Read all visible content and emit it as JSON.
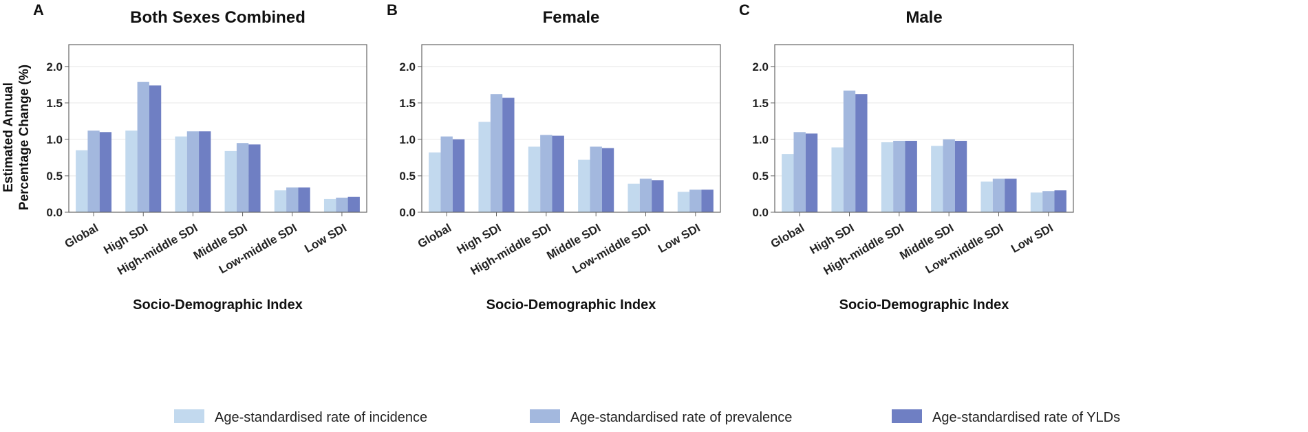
{
  "colors": {
    "incidence": "#c2d9ee",
    "prevalence": "#a3b8de",
    "ylds": "#6f7fc3",
    "grid": "#e6e6e6",
    "frame": "#666666"
  },
  "shared": {
    "ylabel_line1": "Estimated Annual",
    "ylabel_line2": "Percentage Change (%)",
    "xlabel": "Socio-Demographic Index",
    "y_ticks": [
      "0.0",
      "0.5",
      "1.0",
      "1.5",
      "2.0"
    ]
  },
  "legend": [
    {
      "label": "Age-standardised rate of incidence",
      "color_key": "incidence"
    },
    {
      "label": "Age-standardised rate of prevalence",
      "color_key": "prevalence"
    },
    {
      "label": "Age-standardised rate of YLDs",
      "color_key": "ylds"
    }
  ],
  "chart_data": [
    {
      "type": "bar",
      "panel": "A",
      "title": "Both Sexes Combined",
      "xlabel": "Socio-Demographic Index",
      "ylabel": "Estimated Annual Percentage Change (%)",
      "ylim": [
        0,
        2.3
      ],
      "categories": [
        "Global",
        "High SDI",
        "High-middle SDI",
        "Middle SDI",
        "Low-middle SDI",
        "Low SDI"
      ],
      "series": [
        {
          "name": "Age-standardised rate of incidence",
          "values": [
            0.85,
            1.12,
            1.04,
            0.84,
            0.3,
            0.18
          ]
        },
        {
          "name": "Age-standardised rate of prevalence",
          "values": [
            1.12,
            1.79,
            1.11,
            0.95,
            0.34,
            0.2
          ]
        },
        {
          "name": "Age-standardised rate of YLDs",
          "values": [
            1.1,
            1.74,
            1.11,
            0.93,
            0.34,
            0.21
          ]
        }
      ]
    },
    {
      "type": "bar",
      "panel": "B",
      "title": "Female",
      "xlabel": "Socio-Demographic Index",
      "ylabel": "",
      "ylim": [
        0,
        2.3
      ],
      "categories": [
        "Global",
        "High SDI",
        "High-middle SDI",
        "Middle SDI",
        "Low-middle SDI",
        "Low SDI"
      ],
      "series": [
        {
          "name": "Age-standardised rate of incidence",
          "values": [
            0.82,
            1.24,
            0.9,
            0.72,
            0.39,
            0.28
          ]
        },
        {
          "name": "Age-standardised rate of prevalence",
          "values": [
            1.04,
            1.62,
            1.06,
            0.9,
            0.46,
            0.31
          ]
        },
        {
          "name": "Age-standardised rate of YLDs",
          "values": [
            1.0,
            1.57,
            1.05,
            0.88,
            0.44,
            0.31
          ]
        }
      ]
    },
    {
      "type": "bar",
      "panel": "C",
      "title": "Male",
      "xlabel": "Socio-Demographic Index",
      "ylabel": "",
      "ylim": [
        0,
        2.3
      ],
      "categories": [
        "Global",
        "High SDI",
        "High-middle SDI",
        "Middle SDI",
        "Low-middle SDI",
        "Low SDI"
      ],
      "series": [
        {
          "name": "Age-standardised rate of incidence",
          "values": [
            0.8,
            0.89,
            0.96,
            0.91,
            0.42,
            0.27
          ]
        },
        {
          "name": "Age-standardised rate of prevalence",
          "values": [
            1.1,
            1.67,
            0.98,
            1.0,
            0.46,
            0.29
          ]
        },
        {
          "name": "Age-standardised rate of YLDs",
          "values": [
            1.08,
            1.62,
            0.98,
            0.98,
            0.46,
            0.3
          ]
        }
      ]
    }
  ]
}
